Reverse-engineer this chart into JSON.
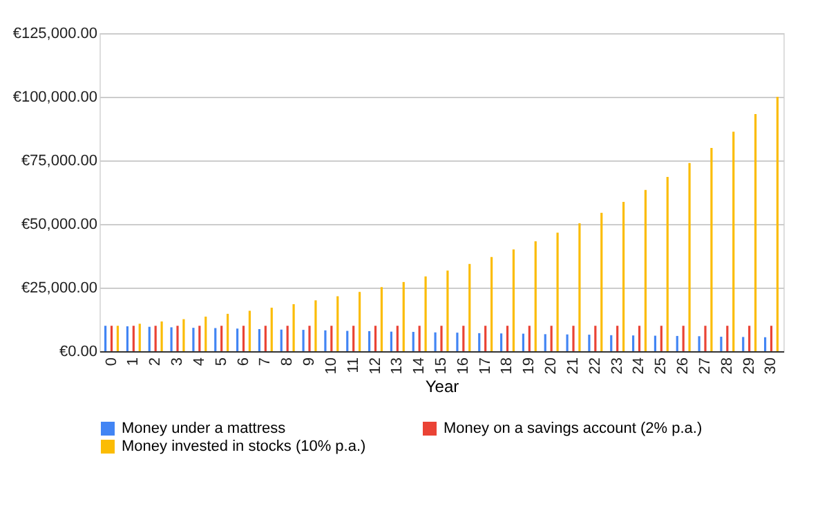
{
  "chart_data": {
    "type": "bar",
    "xlabel": "Year",
    "categories": [
      "0",
      "1",
      "2",
      "3",
      "4",
      "5",
      "6",
      "7",
      "8",
      "9",
      "10",
      "11",
      "12",
      "13",
      "14",
      "15",
      "16",
      "17",
      "18",
      "19",
      "20",
      "21",
      "22",
      "23",
      "24",
      "25",
      "26",
      "27",
      "28",
      "29",
      "30"
    ],
    "series": [
      {
        "name": "Money under a mattress",
        "color": "#4285f4",
        "values": [
          10000,
          9800,
          9600,
          9400,
          9200,
          9100,
          8900,
          8700,
          8500,
          8400,
          8200,
          8000,
          7900,
          7700,
          7600,
          7400,
          7300,
          7100,
          7000,
          6900,
          6700,
          6600,
          6500,
          6300,
          6200,
          6100,
          6000,
          5900,
          5700,
          5600,
          5500
        ]
      },
      {
        "name": "Money on a savings account (2% p.a.)",
        "color": "#ea4335",
        "values": [
          10000,
          10000,
          10000,
          10000,
          10000,
          10000,
          10000,
          10000,
          10000,
          10000,
          10000,
          10000,
          10000,
          10000,
          10000,
          10000,
          10000,
          10000,
          10000,
          10000,
          10000,
          10000,
          10000,
          10000,
          10000,
          10000,
          10000,
          10000,
          10000,
          10000,
          10000
        ]
      },
      {
        "name": "Money invested in stocks (10% p.a.)",
        "color": "#fbbc04",
        "values": [
          10000,
          10800,
          11700,
          12600,
          13600,
          14700,
          15900,
          17100,
          18500,
          20000,
          21600,
          23300,
          25200,
          27200,
          29400,
          31700,
          34300,
          37000,
          40000,
          43200,
          46600,
          50300,
          54400,
          58700,
          63400,
          68500,
          74000,
          79900,
          86300,
          93200,
          100000
        ]
      }
    ],
    "ylim": [
      0,
      125000
    ],
    "yticks": [
      {
        "value": 0,
        "label": "€0.00"
      },
      {
        "value": 25000,
        "label": "€25,000.00"
      },
      {
        "value": 50000,
        "label": "€50,000.00"
      },
      {
        "value": 75000,
        "label": "€75,000.00"
      },
      {
        "value": 100000,
        "label": "€100,000.00"
      },
      {
        "value": 125000,
        "label": "€125,000.00"
      }
    ],
    "grid": "y",
    "legend": "bottom"
  }
}
